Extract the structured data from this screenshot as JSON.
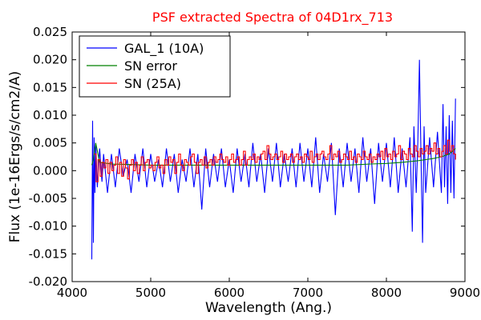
{
  "chart_data": {
    "type": "line",
    "title": "PSF extracted Spectra of 04D1rx_713",
    "title_color": "#ff0000",
    "xlabel": "Wavelength (Ang.)",
    "ylabel": "Flux (1e-16Ergs/s/cm2/A)",
    "xlim": [
      4000,
      9000
    ],
    "ylim": [
      -0.02,
      0.025
    ],
    "xticks": [
      4000,
      5000,
      6000,
      7000,
      8000,
      9000
    ],
    "xtick_labels": [
      "4000",
      "5000",
      "6000",
      "7000",
      "8000",
      "9000"
    ],
    "yticks": [
      -0.02,
      -0.015,
      -0.01,
      -0.005,
      0.0,
      0.005,
      0.01,
      0.015,
      0.02,
      0.025
    ],
    "ytick_labels": [
      "-0.020",
      "-0.015",
      "-0.010",
      "-0.005",
      "0.000",
      "0.005",
      "0.010",
      "0.015",
      "0.020",
      "0.025"
    ],
    "grid": false,
    "legend_position": "top-left",
    "series": [
      {
        "name": "GAL_1 (10A)",
        "color": "#0000ff",
        "step": false,
        "x": [
          4250,
          4260,
          4270,
          4280,
          4290,
          4300,
          4320,
          4350,
          4380,
          4400,
          4450,
          4500,
          4550,
          4600,
          4650,
          4700,
          4750,
          4800,
          4850,
          4900,
          4950,
          5000,
          5050,
          5100,
          5150,
          5200,
          5250,
          5300,
          5350,
          5400,
          5450,
          5500,
          5550,
          5600,
          5650,
          5700,
          5750,
          5800,
          5850,
          5900,
          5950,
          6000,
          6050,
          6100,
          6150,
          6200,
          6250,
          6300,
          6350,
          6400,
          6450,
          6500,
          6550,
          6600,
          6650,
          6700,
          6750,
          6800,
          6850,
          6900,
          6950,
          7000,
          7050,
          7100,
          7150,
          7200,
          7250,
          7300,
          7350,
          7400,
          7450,
          7500,
          7550,
          7600,
          7650,
          7700,
          7750,
          7800,
          7850,
          7900,
          7950,
          8000,
          8050,
          8100,
          8150,
          8200,
          8250,
          8300,
          8330,
          8350,
          8380,
          8400,
          8420,
          8440,
          8460,
          8480,
          8500,
          8550,
          8600,
          8650,
          8700,
          8720,
          8740,
          8760,
          8780,
          8800,
          8820,
          8840,
          8860,
          8880
        ],
        "y": [
          -0.016,
          0.009,
          -0.013,
          0.006,
          -0.004,
          0.005,
          -0.003,
          0.004,
          -0.002,
          0.003,
          -0.004,
          0.003,
          -0.003,
          0.004,
          -0.001,
          0.002,
          -0.004,
          0.003,
          -0.002,
          0.004,
          -0.003,
          0.003,
          -0.002,
          0.002,
          -0.003,
          0.004,
          -0.002,
          0.003,
          -0.004,
          0.002,
          -0.002,
          0.004,
          -0.003,
          0.003,
          -0.007,
          0.004,
          -0.003,
          0.003,
          -0.002,
          0.004,
          -0.003,
          0.002,
          -0.004,
          0.004,
          -0.002,
          0.003,
          -0.003,
          0.005,
          -0.002,
          0.003,
          -0.004,
          0.004,
          -0.002,
          0.005,
          -0.003,
          0.003,
          -0.002,
          0.004,
          -0.003,
          0.005,
          -0.002,
          0.004,
          -0.003,
          0.006,
          -0.004,
          0.003,
          -0.002,
          0.005,
          -0.008,
          0.004,
          -0.003,
          0.005,
          -0.002,
          0.004,
          -0.004,
          0.006,
          -0.002,
          0.004,
          -0.006,
          0.005,
          -0.002,
          0.005,
          -0.003,
          0.006,
          -0.004,
          0.004,
          -0.003,
          0.006,
          -0.011,
          0.008,
          -0.004,
          0.005,
          0.02,
          0.003,
          -0.013,
          0.008,
          -0.004,
          0.006,
          -0.003,
          0.007,
          -0.004,
          0.012,
          -0.003,
          0.008,
          -0.006,
          0.01,
          -0.004,
          0.009,
          -0.005,
          0.013
        ]
      },
      {
        "name": "SN error",
        "color": "#008000",
        "step": false,
        "x": [
          4250,
          4270,
          4300,
          4350,
          4500,
          4750,
          5000,
          5500,
          6000,
          6500,
          7000,
          7500,
          7800,
          8000,
          8200,
          8400,
          8500,
          8600,
          8700,
          8800,
          8880
        ],
        "y": [
          0.001,
          0.002,
          0.005,
          0.0015,
          0.0012,
          0.0011,
          0.001,
          0.001,
          0.001,
          0.001,
          0.001,
          0.001,
          0.0012,
          0.0013,
          0.0015,
          0.0018,
          0.002,
          0.0022,
          0.0025,
          0.003,
          0.004
        ]
      },
      {
        "name": "SN (25A)",
        "color": "#ff0000",
        "step": true,
        "x": [
          4280,
          4305,
          4330,
          4355,
          4380,
          4405,
          4430,
          4455,
          4480,
          4505,
          4530,
          4555,
          4580,
          4605,
          4630,
          4655,
          4680,
          4705,
          4730,
          4755,
          4780,
          4805,
          4830,
          4855,
          4880,
          4905,
          4930,
          4955,
          4980,
          5005,
          5030,
          5055,
          5080,
          5105,
          5130,
          5155,
          5180,
          5205,
          5230,
          5255,
          5280,
          5305,
          5330,
          5355,
          5380,
          5405,
          5430,
          5455,
          5480,
          5505,
          5530,
          5555,
          5580,
          5605,
          5630,
          5655,
          5680,
          5705,
          5730,
          5755,
          5780,
          5805,
          5830,
          5855,
          5880,
          5905,
          5930,
          5955,
          5980,
          6005,
          6030,
          6055,
          6080,
          6105,
          6130,
          6155,
          6180,
          6205,
          6230,
          6255,
          6280,
          6305,
          6330,
          6355,
          6380,
          6405,
          6430,
          6455,
          6480,
          6505,
          6530,
          6555,
          6580,
          6605,
          6630,
          6655,
          6680,
          6705,
          6730,
          6755,
          6780,
          6805,
          6830,
          6855,
          6880,
          6905,
          6930,
          6955,
          6980,
          7005,
          7030,
          7055,
          7080,
          7105,
          7130,
          7155,
          7180,
          7205,
          7230,
          7255,
          7280,
          7305,
          7330,
          7355,
          7380,
          7405,
          7430,
          7455,
          7480,
          7505,
          7530,
          7555,
          7580,
          7605,
          7630,
          7655,
          7680,
          7705,
          7730,
          7755,
          7780,
          7805,
          7830,
          7855,
          7880,
          7905,
          7930,
          7955,
          7980,
          8005,
          8030,
          8055,
          8080,
          8105,
          8130,
          8155,
          8180,
          8205,
          8230,
          8255,
          8280,
          8305,
          8330,
          8355,
          8380,
          8405,
          8430,
          8455,
          8480,
          8505,
          8530,
          8555,
          8580,
          8605,
          8630,
          8655,
          8680,
          8705,
          8730,
          8755,
          8780,
          8805,
          8830,
          8855,
          8880
        ],
        "y": [
          0.003,
          -0.002,
          0.002,
          -0.001,
          0.0015,
          0.0005,
          0.002,
          -0.0005,
          0.0015,
          0.0,
          0.001,
          0.0025,
          -0.0005,
          0.0015,
          -0.001,
          0.002,
          0.0005,
          -0.0015,
          0.001,
          0.002,
          0.0,
          0.0015,
          -0.0005,
          0.001,
          0.0025,
          0.0,
          0.0015,
          0.002,
          0.0005,
          0.001,
          0.0,
          0.0015,
          0.0025,
          0.0005,
          0.001,
          -0.0005,
          0.002,
          0.001,
          0.0025,
          0.0015,
          0.002,
          -0.0005,
          0.0015,
          0.003,
          0.001,
          0.0,
          0.002,
          0.0015,
          0.001,
          0.0025,
          0.003,
          0.0015,
          -0.0005,
          0.0015,
          0.002,
          0.001,
          0.0025,
          0.0005,
          0.0015,
          0.002,
          0.001,
          0.0025,
          0.0015,
          0.002,
          0.003,
          0.002,
          0.0015,
          0.0025,
          0.001,
          0.002,
          0.003,
          0.0015,
          0.002,
          0.0025,
          0.001,
          0.002,
          0.0035,
          0.001,
          0.002,
          0.0025,
          0.002,
          0.003,
          0.0015,
          0.0025,
          0.002,
          0.003,
          0.0035,
          0.002,
          0.0045,
          0.003,
          0.002,
          0.0025,
          0.003,
          0.002,
          0.0025,
          0.0035,
          0.0015,
          0.003,
          0.002,
          0.0025,
          0.003,
          0.0015,
          0.0025,
          0.003,
          0.002,
          0.0025,
          0.0015,
          0.003,
          0.0025,
          0.002,
          0.0035,
          0.0015,
          0.0025,
          0.003,
          0.002,
          0.003,
          0.0035,
          0.0025,
          0.002,
          0.003,
          0.0045,
          0.002,
          0.003,
          0.0025,
          0.0035,
          0.0015,
          0.002,
          0.003,
          0.0025,
          0.002,
          0.0035,
          0.002,
          0.0025,
          0.0015,
          0.003,
          0.0025,
          0.002,
          0.0035,
          0.0025,
          0.002,
          0.003,
          0.0015,
          0.0025,
          0.002,
          0.003,
          0.0025,
          0.0035,
          0.002,
          0.004,
          0.0025,
          0.003,
          0.002,
          0.0035,
          0.0025,
          0.003,
          0.0045,
          0.002,
          0.0035,
          0.003,
          0.002,
          0.004,
          0.003,
          0.0025,
          0.0045,
          0.0035,
          0.0025,
          0.004,
          0.003,
          0.0035,
          0.0045,
          0.003,
          0.004,
          0.0035,
          0.005,
          0.003,
          0.004,
          0.0025,
          0.0035,
          0.0045,
          0.003,
          0.0055,
          0.0035,
          0.0045,
          0.003,
          0.002
        ]
      }
    ]
  }
}
